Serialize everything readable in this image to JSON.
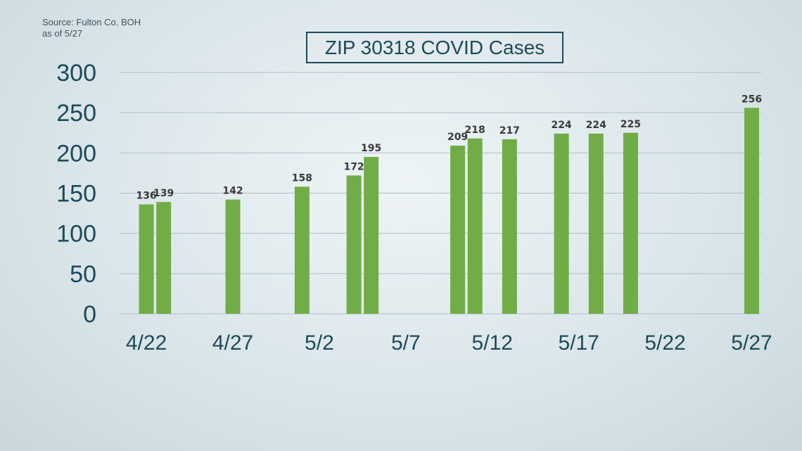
{
  "source": {
    "line1": "Source: Fulton Co. BOH",
    "line2": "as of 5/27"
  },
  "colors": {
    "bar": "#70ad47",
    "gridline": "#aebfc6",
    "axis_text": "#1d4a5a"
  },
  "chart_data": {
    "type": "bar",
    "title": "ZIP 30318 COVID Cases",
    "xlabel": "",
    "ylabel": "",
    "ylim": [
      0,
      300
    ],
    "yticks": [
      0,
      50,
      100,
      150,
      200,
      250,
      300
    ],
    "xlim": [
      "4/21",
      "5/27"
    ],
    "xticks": [
      "4/22",
      "4/27",
      "5/2",
      "5/7",
      "5/12",
      "5/17",
      "5/22",
      "5/27"
    ],
    "grid": true,
    "x": [
      "4/22",
      "4/23",
      "4/27",
      "5/1",
      "5/4",
      "5/5",
      "5/10",
      "5/11",
      "5/13",
      "5/16",
      "5/18",
      "5/20",
      "5/27"
    ],
    "values": [
      136,
      139,
      142,
      158,
      172,
      195,
      209,
      218,
      217,
      224,
      224,
      225,
      256
    ]
  }
}
